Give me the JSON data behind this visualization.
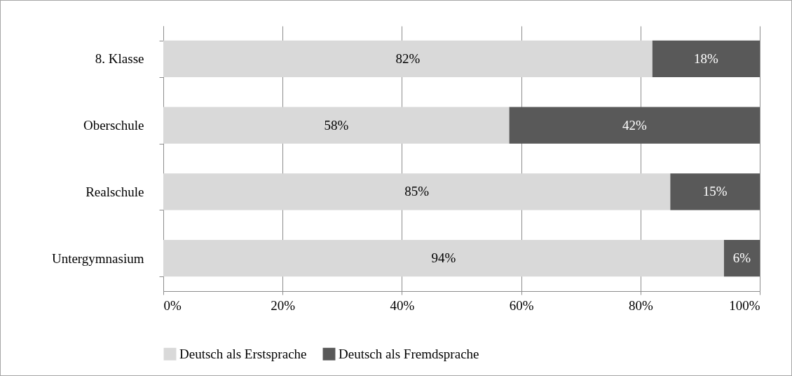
{
  "chart_data": {
    "type": "bar",
    "orientation": "horizontal",
    "stacked": true,
    "categories": [
      "8. Klasse",
      "Oberschule",
      "Realschule",
      "Untergymnasium"
    ],
    "series": [
      {
        "name": "Deutsch als Erstsprache",
        "color": "#d9d9d9",
        "values": [
          82,
          58,
          85,
          94
        ],
        "value_labels": [
          "82%",
          "58%",
          "85%",
          "94%"
        ]
      },
      {
        "name": "Deutsch als Fremdsprache",
        "color": "#595959",
        "values": [
          18,
          42,
          15,
          6
        ],
        "value_labels": [
          "18%",
          "42%",
          "15%",
          "6%"
        ]
      }
    ],
    "xlim": [
      0,
      100
    ],
    "xticks": [
      {
        "value": 0,
        "label": "0%"
      },
      {
        "value": 20,
        "label": "20%"
      },
      {
        "value": 40,
        "label": "40%"
      },
      {
        "value": 60,
        "label": "60%"
      },
      {
        "value": 80,
        "label": "80%"
      },
      {
        "value": 100,
        "label": "100%"
      }
    ],
    "grid": "x",
    "legend": "bottom"
  }
}
